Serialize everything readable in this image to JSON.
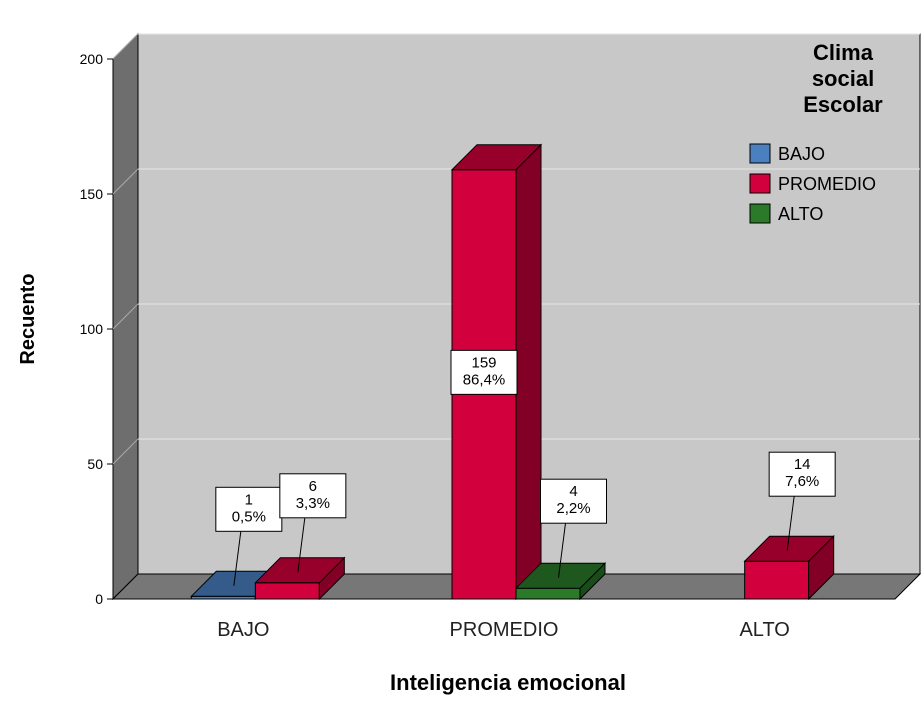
{
  "chart_data": {
    "type": "bar",
    "xlabel": "Inteligencia emocional",
    "ylabel": "Recuento",
    "ylim": [
      0,
      200
    ],
    "yticks": [
      0,
      50,
      100,
      150,
      200
    ],
    "categories": [
      "BAJO",
      "PROMEDIO",
      "ALTO"
    ],
    "legend": {
      "title": [
        "Clima",
        "social",
        "Escolar"
      ],
      "position": "top-right"
    },
    "series": [
      {
        "name": "BAJO",
        "color": "#4a7fc0",
        "values": [
          1,
          null,
          null
        ],
        "labels": [
          "1\n0,5%",
          null,
          null
        ]
      },
      {
        "name": "PROMEDIO",
        "color": "#d2003c",
        "values": [
          6,
          159,
          14
        ],
        "labels": [
          "6\n3,3%",
          "159\n86,4%",
          "14\n7,6%"
        ]
      },
      {
        "name": "ALTO",
        "color": "#2a7a2a",
        "values": [
          null,
          4,
          null
        ],
        "labels": [
          null,
          "4\n2,2%",
          null
        ]
      }
    ],
    "grid": true,
    "style": "3d"
  }
}
